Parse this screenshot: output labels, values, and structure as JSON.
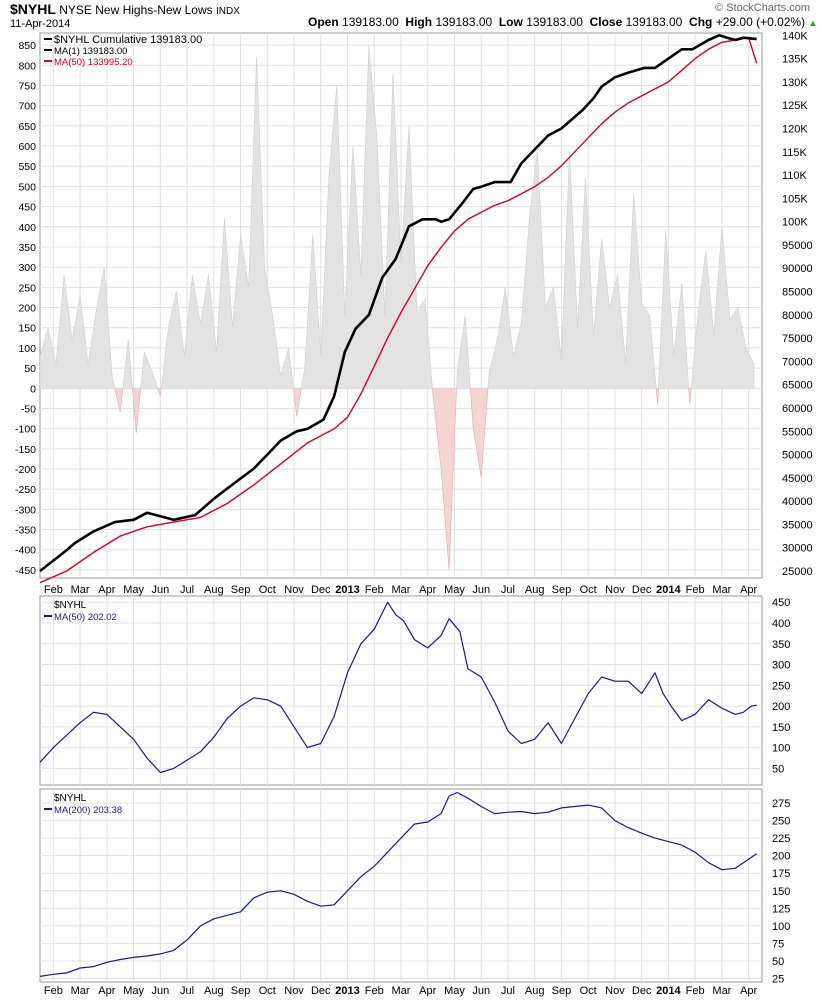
{
  "header": {
    "symbol": "$NYHL",
    "name": "NYSE New Highs-New Lows",
    "exchange": "INDX",
    "date": "11-Apr-2014",
    "credit": "© StockCharts.com",
    "open_label": "Open",
    "open": "139183.00",
    "high_label": "High",
    "high": "139183.00",
    "low_label": "Low",
    "low": "139183.00",
    "close_label": "Close",
    "close": "139183.00",
    "chg_label": "Chg",
    "chg": "+29.00 (+0.02%)"
  },
  "colors": {
    "grid": "#e0e0e0",
    "area_pos": "#e3e3e3",
    "area_neg": "#f7d4d4",
    "cumulative": "#000000",
    "ma50_cum": "#d4002a",
    "blue": "#1a1a8c"
  },
  "x_axis": {
    "ticks": [
      "Feb",
      "Mar",
      "Apr",
      "May",
      "Jun",
      "Jul",
      "Aug",
      "Sep",
      "Oct",
      "Nov",
      "Dec",
      "2013",
      "Feb",
      "Mar",
      "Apr",
      "May",
      "Jun",
      "Jul",
      "Aug",
      "Sep",
      "Oct",
      "Nov",
      "Dec",
      "2014",
      "Feb",
      "Mar",
      "Apr"
    ],
    "bold_ticks": [
      "2013",
      "2014"
    ]
  },
  "chart_data": [
    {
      "type": "area",
      "panel": "main",
      "legend": [
        "$NYHL Cumulative 139183.00",
        "MA(1) 139183.00",
        "MA(50) 133995.20"
      ],
      "left_axis": {
        "ticks": [
          -450,
          -400,
          -350,
          -300,
          -250,
          -200,
          -150,
          -100,
          -50,
          0,
          50,
          100,
          150,
          200,
          250,
          300,
          350,
          400,
          450,
          500,
          550,
          600,
          650,
          700,
          750,
          800,
          850
        ],
        "ylim": [
          -470,
          880
        ]
      },
      "right_axis": {
        "ticks": [
          "25000",
          "30000",
          "35000",
          "40000",
          "45000",
          "50000",
          "55000",
          "60000",
          "65000",
          "70000",
          "75000",
          "80000",
          "85000",
          "90000",
          "95000",
          "100K",
          "105K",
          "110K",
          "115K",
          "120K",
          "125K",
          "130K",
          "135K",
          "140K"
        ],
        "ylim": [
          23500,
          140500
        ]
      },
      "series": [
        {
          "name": "$NYHL Cumulative",
          "axis": "right",
          "x": [
            0,
            1,
            1.3,
            2,
            2.8,
            3.5,
            4,
            5,
            5.8,
            6.5,
            7.3,
            8,
            8.5,
            9,
            9.6,
            10,
            10.6,
            11,
            11.4,
            11.8,
            12.3,
            12.8,
            13.3,
            13.8,
            14.3,
            14.8,
            15,
            15.3,
            15.8,
            16.2,
            16.5,
            17,
            17.6,
            18,
            18.5,
            19,
            19.5,
            20,
            20.3,
            20.7,
            21,
            21.5,
            22,
            22.6,
            23,
            23.5,
            24,
            24.4,
            25,
            25.4,
            25.7,
            26,
            26.3,
            26.8
          ],
          "y": [
            25000,
            29500,
            31000,
            33500,
            35500,
            36000,
            37500,
            36000,
            37000,
            40500,
            44000,
            47000,
            50000,
            53000,
            55000,
            55500,
            57500,
            62500,
            72000,
            77000,
            80000,
            88000,
            92000,
            99000,
            100500,
            100500,
            100000,
            100500,
            104000,
            107000,
            107500,
            108500,
            108500,
            112500,
            115500,
            118500,
            120000,
            122500,
            124000,
            126500,
            129000,
            131000,
            132000,
            133000,
            133000,
            135000,
            137000,
            137000,
            139000,
            140000,
            139500,
            139000,
            139500,
            139183
          ]
        },
        {
          "name": "MA(50)",
          "axis": "right",
          "x": [
            0,
            1,
            2,
            3,
            4,
            5,
            6,
            7,
            8,
            9,
            10,
            11,
            11.5,
            12,
            12.5,
            13,
            13.5,
            14,
            14.5,
            15,
            15.5,
            16,
            16.5,
            17,
            17.5,
            18,
            18.5,
            19,
            19.5,
            20,
            20.5,
            21,
            21.5,
            22,
            22.5,
            23,
            23.5,
            24,
            24.5,
            25,
            25.5,
            26,
            26.5,
            26.8
          ],
          "y": [
            22500,
            25000,
            29000,
            32500,
            34500,
            35500,
            36500,
            39500,
            43500,
            48000,
            52500,
            55500,
            58000,
            63000,
            69000,
            75000,
            80500,
            85500,
            90500,
            94500,
            98000,
            100500,
            102000,
            103500,
            104500,
            106000,
            107500,
            109500,
            112000,
            115000,
            118000,
            121000,
            123500,
            125500,
            127000,
            128500,
            130000,
            132500,
            135000,
            137000,
            138500,
            139000,
            139500,
            133995
          ]
        },
        {
          "name": "$NYHL",
          "axis": "left",
          "x": [
            0,
            0.3,
            0.6,
            0.9,
            1.2,
            1.5,
            1.8,
            2.1,
            2.4,
            2.7,
            3,
            3.3,
            3.6,
            3.9,
            4.2,
            4.5,
            4.8,
            5.1,
            5.4,
            5.7,
            6,
            6.3,
            6.6,
            6.9,
            7.2,
            7.5,
            7.8,
            8.1,
            8.4,
            8.7,
            9,
            9.3,
            9.6,
            9.9,
            10.2,
            10.5,
            10.8,
            11.1,
            11.4,
            11.7,
            12,
            12.3,
            12.6,
            12.9,
            13.2,
            13.5,
            13.8,
            14.1,
            14.4,
            14.7,
            15,
            15.3,
            15.6,
            15.9,
            16.2,
            16.5,
            16.8,
            17.1,
            17.4,
            17.7,
            18,
            18.3,
            18.6,
            18.9,
            19.2,
            19.5,
            19.8,
            20.1,
            20.4,
            20.7,
            21,
            21.3,
            21.6,
            21.9,
            22.2,
            22.5,
            22.8,
            23.1,
            23.4,
            23.7,
            24,
            24.3,
            24.6,
            24.9,
            25.2,
            25.5,
            25.8,
            26.1,
            26.4,
            26.7
          ],
          "y": [
            80,
            150,
            60,
            280,
            120,
            230,
            60,
            190,
            300,
            30,
            -60,
            120,
            -110,
            90,
            40,
            -20,
            150,
            240,
            80,
            280,
            160,
            280,
            90,
            420,
            150,
            380,
            250,
            820,
            300,
            180,
            30,
            100,
            -70,
            50,
            380,
            80,
            520,
            750,
            180,
            600,
            280,
            850,
            620,
            180,
            780,
            310,
            650,
            190,
            220,
            -20,
            -200,
            -450,
            40,
            180,
            -100,
            -220,
            40,
            120,
            250,
            80,
            160,
            420,
            590,
            200,
            250,
            70,
            590,
            150,
            520,
            130,
            370,
            200,
            280,
            60,
            480,
            210,
            180,
            -40,
            390,
            80,
            260,
            -40,
            180,
            340,
            130,
            400,
            170,
            200,
            100,
            60
          ]
        },
        {
          "name": "MA(1)",
          "axis": "right",
          "x": [
            0,
            26.8
          ],
          "y": [
            25000,
            139183
          ]
        }
      ]
    },
    {
      "type": "line",
      "panel": "ma50",
      "legend": [
        "$NYHL",
        "MA(50) 202.02"
      ],
      "axis": {
        "ticks": [
          50,
          100,
          150,
          200,
          250,
          300,
          350,
          400,
          450
        ],
        "ylim": [
          10,
          465
        ]
      },
      "series": [
        {
          "name": "MA(50)",
          "x": [
            0,
            0.5,
            1,
            1.5,
            2,
            2.5,
            3,
            3.5,
            4,
            4.5,
            5,
            5.5,
            6,
            6.5,
            7,
            7.5,
            8,
            8.5,
            9,
            9.5,
            10,
            10.5,
            11,
            11.5,
            12,
            12.5,
            13,
            13.3,
            13.6,
            14,
            14.5,
            15,
            15.3,
            15.7,
            16,
            16.5,
            17,
            17.5,
            18,
            18.5,
            19,
            19.5,
            20,
            20.5,
            21,
            21.5,
            22,
            22.5,
            23,
            23.3,
            23.6,
            24,
            24.5,
            25,
            25.5,
            26,
            26.3,
            26.6,
            26.8
          ],
          "y": [
            65,
            100,
            130,
            160,
            185,
            180,
            150,
            120,
            75,
            40,
            50,
            70,
            90,
            125,
            170,
            200,
            220,
            215,
            200,
            150,
            100,
            110,
            175,
            280,
            350,
            385,
            450,
            420,
            405,
            360,
            340,
            370,
            410,
            380,
            290,
            270,
            210,
            140,
            110,
            120,
            160,
            110,
            170,
            230,
            270,
            260,
            260,
            230,
            280,
            230,
            200,
            165,
            180,
            215,
            195,
            180,
            185,
            200,
            202
          ]
        }
      ]
    },
    {
      "type": "line",
      "panel": "ma200",
      "legend": [
        "$NYHL",
        "MA(200) 203.38"
      ],
      "axis": {
        "ticks": [
          25,
          50,
          75,
          100,
          125,
          150,
          175,
          200,
          225,
          250,
          275
        ],
        "ylim": [
          20,
          295
        ]
      },
      "series": [
        {
          "name": "MA(200)",
          "x": [
            0,
            0.5,
            1,
            1.5,
            2,
            2.5,
            3,
            3.5,
            4,
            4.5,
            5,
            5.5,
            6,
            6.5,
            7,
            7.5,
            8,
            8.5,
            9,
            9.5,
            10,
            10.5,
            11,
            11.5,
            12,
            12.5,
            13,
            13.5,
            14,
            14.5,
            15,
            15.3,
            15.6,
            16,
            16.5,
            17,
            17.5,
            18,
            18.5,
            19,
            19.5,
            20,
            20.5,
            21,
            21.5,
            22,
            22.5,
            23,
            23.5,
            24,
            24.5,
            25,
            25.5,
            26,
            26.5,
            26.8
          ],
          "y": [
            28,
            31,
            33,
            40,
            42,
            48,
            52,
            55,
            57,
            60,
            65,
            80,
            100,
            110,
            115,
            120,
            140,
            148,
            150,
            145,
            135,
            128,
            130,
            150,
            170,
            185,
            205,
            225,
            245,
            248,
            260,
            285,
            290,
            282,
            270,
            260,
            262,
            263,
            260,
            262,
            268,
            270,
            272,
            268,
            250,
            240,
            232,
            225,
            220,
            215,
            205,
            190,
            180,
            182,
            195,
            203
          ]
        }
      ]
    }
  ]
}
